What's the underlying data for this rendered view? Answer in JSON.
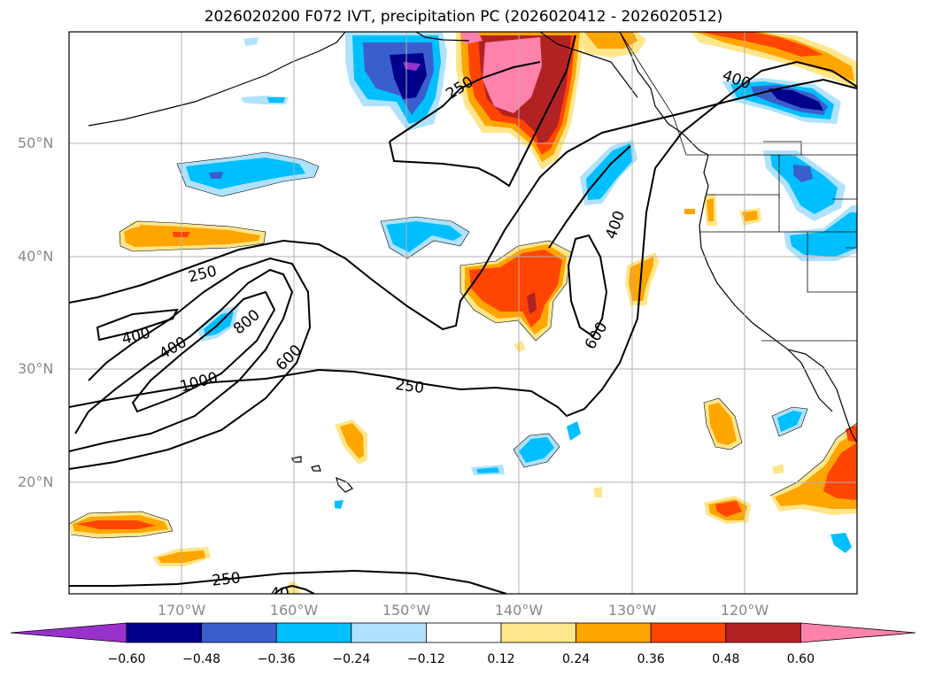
{
  "title": "2026020200 F072 IVT, precipitation PC (2026020412 - 2026020512)",
  "lat_labels": [
    "50°N",
    "40°N",
    "30°N",
    "20°N"
  ],
  "lon_labels": [
    "170°W",
    "160°W",
    "150°W",
    "140°W",
    "130°W",
    "120°W"
  ],
  "colorbar": {
    "labels": [
      "−0.60",
      "−0.48",
      "−0.36",
      "−0.24",
      "−0.12",
      "0.12",
      "0.24",
      "0.36",
      "0.48",
      "0.60"
    ],
    "colors": [
      "#9932cc",
      "#00008b",
      "#3a5fcd",
      "#00bfff",
      "#b0e2ff",
      "#ffffff",
      "#ffe68a",
      "#ffa500",
      "#ff4500",
      "#b22222",
      "#ff82ab"
    ]
  },
  "ivt_contour_labels": [
    "250",
    "250",
    "250",
    "250",
    "400",
    "400",
    "400",
    "400",
    "600",
    "600",
    "800",
    "1000",
    "40"
  ]
}
